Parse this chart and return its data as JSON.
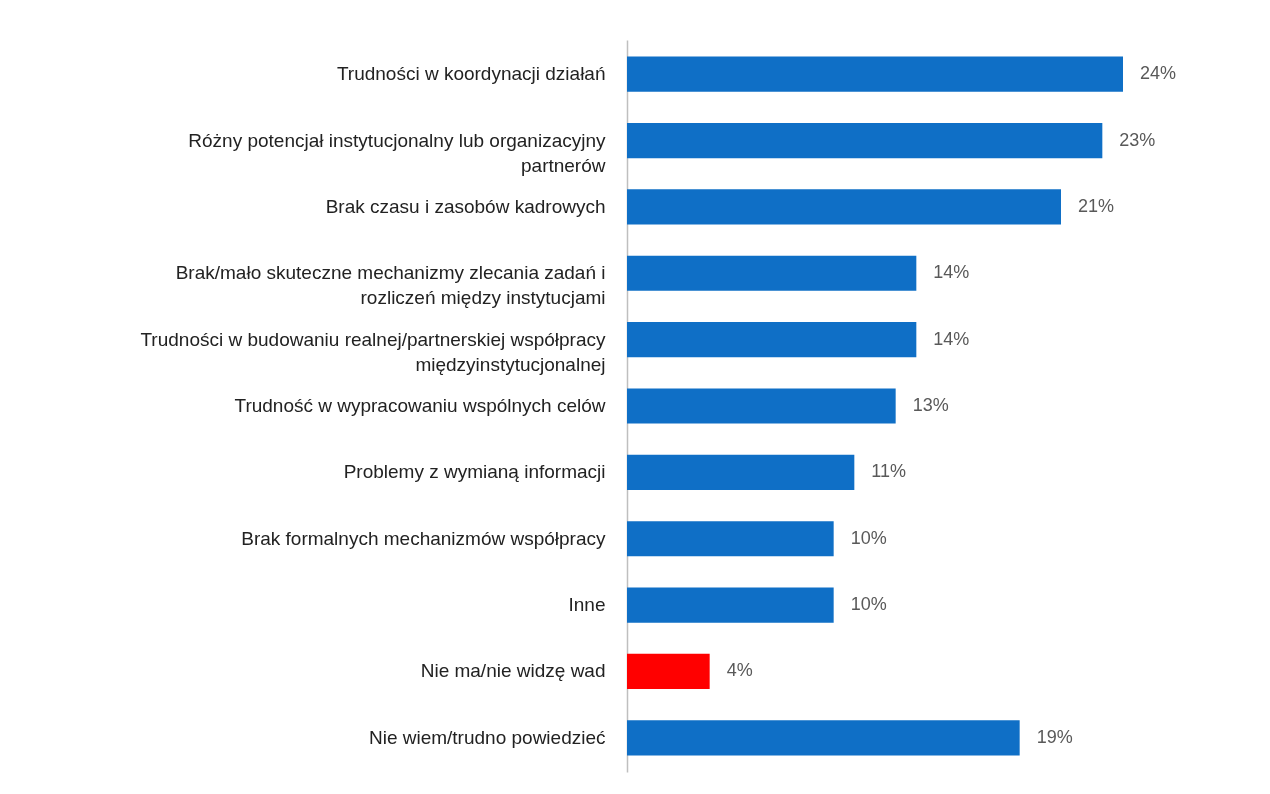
{
  "chart_data": {
    "type": "bar",
    "orientation": "horizontal",
    "categories": [
      "Trudności w koordynacji działań",
      "Różny potencjał instytucjonalny lub organizacyjny partnerów",
      "Brak czasu i zasobów kadrowych",
      "Brak/mało skuteczne mechanizmy zlecania zadań i rozliczeń między instytucjami",
      "Trudności w budowaniu realnej/partnerskiej współpracy międzyinstytucjonalnej",
      "Trudność w wypracowaniu wspólnych celów",
      "Problemy z wymianą informacji",
      "Brak formalnych mechanizmów współpracy",
      "Inne",
      "Nie ma/nie widzę wad",
      "Nie wiem/trudno powiedzieć"
    ],
    "values": [
      24,
      23,
      21,
      14,
      14,
      13,
      11,
      10,
      10,
      4,
      19
    ],
    "value_labels": [
      "24%",
      "23%",
      "21%",
      "14%",
      "14%",
      "13%",
      "11%",
      "10%",
      "10%",
      "4%",
      "19%"
    ],
    "colors": [
      "#0f6fc6",
      "#0f6fc6",
      "#0f6fc6",
      "#0f6fc6",
      "#0f6fc6",
      "#0f6fc6",
      "#0f6fc6",
      "#0f6fc6",
      "#0f6fc6",
      "#ff0000",
      "#0f6fc6"
    ]
  }
}
